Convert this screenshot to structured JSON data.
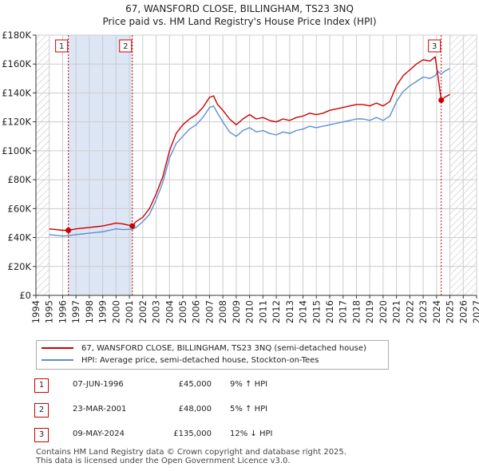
{
  "title": "67, WANSFORD CLOSE, BILLINGHAM, TS23 3NQ",
  "subtitle": "Price paid vs. HM Land Registry's House Price Index (HPI)",
  "legend": {
    "property_label": "67, WANSFORD CLOSE, BILLINGHAM, TS23 3NQ (semi-detached house)",
    "hpi_label": "HPI: Average price, semi-detached house, Stockton-on-Tees"
  },
  "colors": {
    "property": "#cc0000",
    "hpi": "#5b8fd4",
    "band": "#dde6f5",
    "grid": "#cccccc",
    "hatch": "#bbbbbb"
  },
  "transactions": [
    {
      "num": "1",
      "date": "07-JUN-1996",
      "price": "£45,000",
      "hpi": "9% ↑ HPI"
    },
    {
      "num": "2",
      "date": "23-MAR-2001",
      "price": "£48,000",
      "hpi": "5% ↑ HPI"
    },
    {
      "num": "3",
      "date": "09-MAY-2024",
      "price": "£135,000",
      "hpi": "12% ↓ HPI"
    }
  ],
  "footer": {
    "line1": "Contains HM Land Registry data © Crown copyright and database right 2025.",
    "line2": "This data is licensed under the Open Government Licence v3.0."
  },
  "chart_data": {
    "type": "line",
    "xlim": [
      1994,
      2027
    ],
    "ylim": [
      0,
      180000
    ],
    "xticks": [
      1994,
      1995,
      1996,
      1997,
      1998,
      1999,
      2000,
      2001,
      2002,
      2003,
      2004,
      2005,
      2006,
      2007,
      2008,
      2009,
      2010,
      2011,
      2012,
      2013,
      2014,
      2015,
      2016,
      2017,
      2018,
      2019,
      2020,
      2021,
      2022,
      2023,
      2024,
      2025,
      2026,
      2027
    ],
    "yticks": [
      0,
      20000,
      40000,
      60000,
      80000,
      100000,
      120000,
      140000,
      160000,
      180000
    ],
    "ytick_labels": [
      "£0",
      "£20K",
      "£40K",
      "£60K",
      "£80K",
      "£100K",
      "£120K",
      "£140K",
      "£160K",
      "£180K"
    ],
    "shaded_periods": [
      [
        1996.43,
        2001.22
      ]
    ],
    "data_start": 1995.0,
    "future_from": 2025.0,
    "markers": [
      {
        "label": "1",
        "x": 1996.43,
        "y": 45000
      },
      {
        "label": "2",
        "x": 2001.22,
        "y": 48000
      },
      {
        "label": "3",
        "x": 2024.35,
        "y": 135000
      }
    ],
    "series": [
      {
        "name": "67, WANSFORD CLOSE, BILLINGHAM, TS23 3NQ (semi-detached house)",
        "x": [
          1995.0,
          1995.5,
          1996.0,
          1996.43,
          1997.0,
          1997.5,
          1998.0,
          1998.5,
          1999.0,
          1999.5,
          2000.0,
          2000.5,
          2001.22,
          2001.5,
          2002.0,
          2002.5,
          2003.0,
          2003.5,
          2004.0,
          2004.5,
          2005.0,
          2005.5,
          2006.0,
          2006.5,
          2007.0,
          2007.3,
          2007.6,
          2008.0,
          2008.5,
          2009.0,
          2009.5,
          2010.0,
          2010.5,
          2011.0,
          2011.5,
          2012.0,
          2012.5,
          2013.0,
          2013.5,
          2014.0,
          2014.5,
          2015.0,
          2015.5,
          2016.0,
          2016.5,
          2017.0,
          2017.5,
          2018.0,
          2018.5,
          2019.0,
          2019.5,
          2020.0,
          2020.5,
          2021.0,
          2021.5,
          2022.0,
          2022.5,
          2023.0,
          2023.5,
          2023.9,
          2024.1,
          2024.35,
          2024.6,
          2025.0
        ],
        "y": [
          46000,
          45500,
          45000,
          45000,
          46000,
          46500,
          47000,
          47500,
          48000,
          49000,
          50000,
          49500,
          48000,
          51000,
          54000,
          60000,
          70000,
          82000,
          100000,
          112000,
          118000,
          122000,
          125000,
          130000,
          137000,
          138000,
          132000,
          128000,
          122000,
          118000,
          122000,
          125000,
          122000,
          123000,
          121000,
          120000,
          122000,
          121000,
          123000,
          124000,
          126000,
          125000,
          126000,
          128000,
          129000,
          130000,
          131000,
          132000,
          132000,
          131000,
          133000,
          131000,
          134000,
          145000,
          152000,
          156000,
          160000,
          163000,
          162000,
          165000,
          152000,
          135000,
          137000,
          139000
        ]
      },
      {
        "name": "HPI: Average price, semi-detached house, Stockton-on-Tees",
        "x": [
          1995.0,
          1995.5,
          1996.0,
          1996.43,
          1997.0,
          1997.5,
          1998.0,
          1998.5,
          1999.0,
          1999.5,
          2000.0,
          2000.5,
          2001.22,
          2001.5,
          2002.0,
          2002.5,
          2003.0,
          2003.5,
          2004.0,
          2004.5,
          2005.0,
          2005.5,
          2006.0,
          2006.5,
          2007.0,
          2007.3,
          2007.6,
          2008.0,
          2008.5,
          2009.0,
          2009.5,
          2010.0,
          2010.5,
          2011.0,
          2011.5,
          2012.0,
          2012.5,
          2013.0,
          2013.5,
          2014.0,
          2014.5,
          2015.0,
          2015.5,
          2016.0,
          2016.5,
          2017.0,
          2017.5,
          2018.0,
          2018.5,
          2019.0,
          2019.5,
          2020.0,
          2020.5,
          2021.0,
          2021.5,
          2022.0,
          2022.5,
          2023.0,
          2023.5,
          2023.9,
          2024.1,
          2024.35,
          2024.6,
          2025.0
        ],
        "y": [
          42000,
          41500,
          41000,
          41300,
          42000,
          42500,
          43000,
          43500,
          44000,
          45000,
          46000,
          45500,
          45700,
          47000,
          51000,
          56000,
          66000,
          78000,
          95000,
          105000,
          110000,
          115000,
          118000,
          123000,
          130000,
          131000,
          126000,
          120000,
          113000,
          110000,
          114000,
          116000,
          113000,
          114000,
          112000,
          111000,
          113000,
          112000,
          114000,
          115000,
          117000,
          116000,
          117000,
          118000,
          119000,
          120000,
          121000,
          122000,
          122000,
          121000,
          123000,
          121000,
          124000,
          134000,
          141000,
          145000,
          148000,
          151000,
          150000,
          152000,
          155000,
          153000,
          155000,
          157000
        ]
      }
    ]
  }
}
